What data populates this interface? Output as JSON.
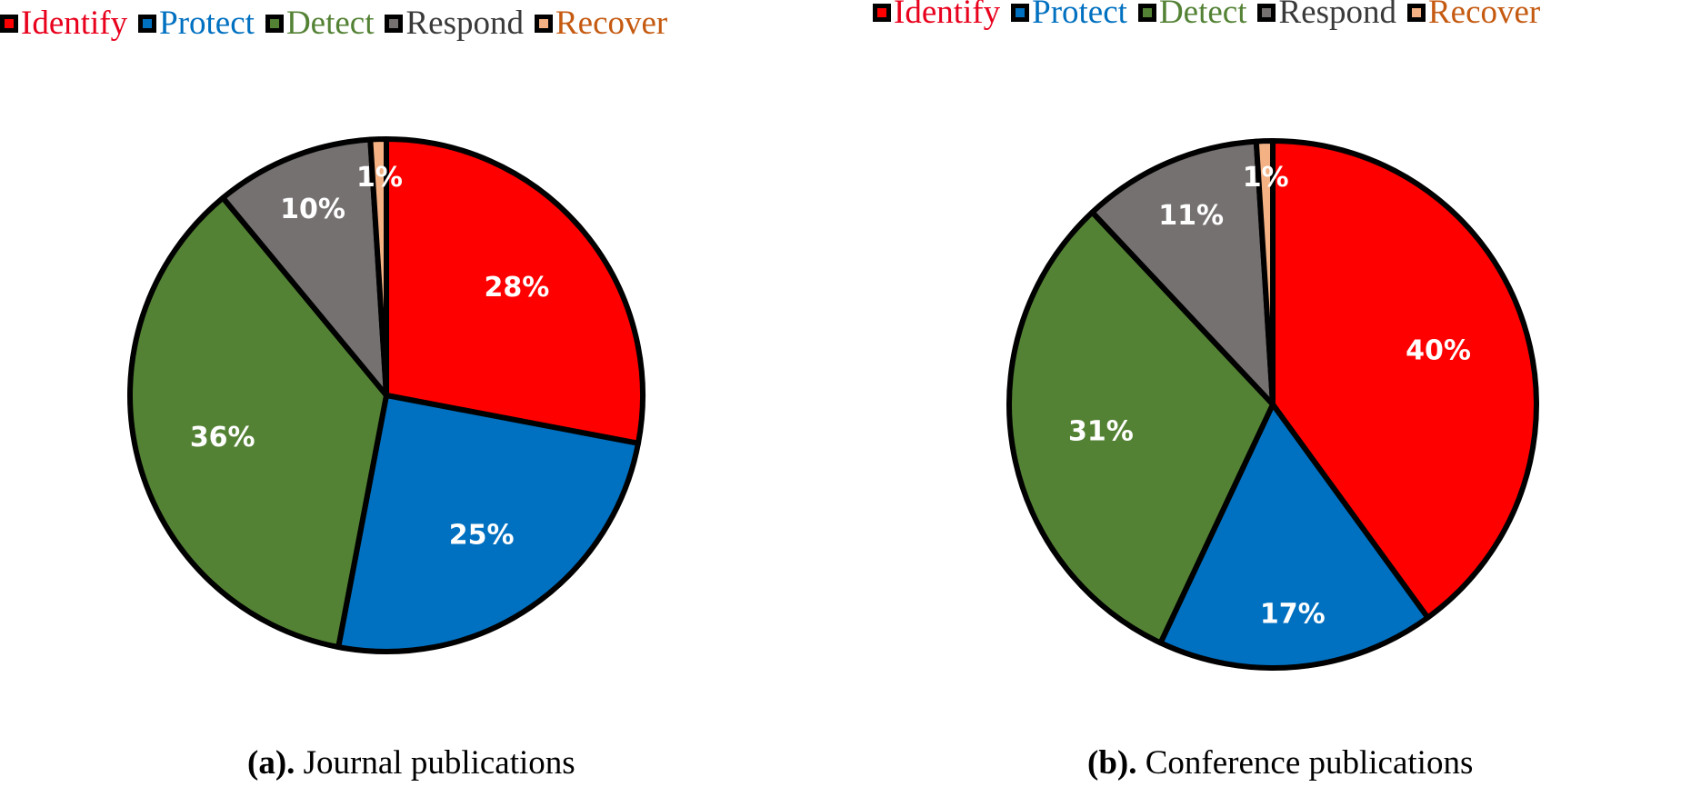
{
  "legend": {
    "items": [
      {
        "label": "Identify",
        "color": "#FF0000",
        "text_color": "#E8001C"
      },
      {
        "label": "Protect",
        "color": "#0070C0",
        "text_color": "#0070C0"
      },
      {
        "label": "Detect",
        "color": "#548235",
        "text_color": "#548235"
      },
      {
        "label": "Respond",
        "color": "#767171",
        "text_color": "#3A3A3A"
      },
      {
        "label": "Recover",
        "color": "#F4B183",
        "text_color": "#C55A11"
      }
    ]
  },
  "captions": {
    "a": {
      "prefix": "(a).",
      "text": " Journal publications"
    },
    "b": {
      "prefix": "(b).",
      "text": " Conference publications"
    }
  },
  "chart_data": [
    {
      "type": "pie",
      "title": "",
      "categories": [
        "Identify",
        "Protect",
        "Detect",
        "Respond",
        "Recover"
      ],
      "values": [
        28,
        25,
        36,
        10,
        1
      ],
      "labels": [
        "28%",
        "25%",
        "36%",
        "10%",
        "1%"
      ],
      "colors": [
        "#FF0000",
        "#0070C0",
        "#548235",
        "#767171",
        "#F4B183"
      ],
      "legend": "top"
    },
    {
      "type": "pie",
      "title": "",
      "categories": [
        "Identify",
        "Protect",
        "Detect",
        "Respond",
        "Recover"
      ],
      "values": [
        40,
        17,
        31,
        11,
        1
      ],
      "labels": [
        "40%",
        "17%",
        "31%",
        "11%",
        "1%"
      ],
      "colors": [
        "#FF0000",
        "#0070C0",
        "#548235",
        "#767171",
        "#F4B183"
      ],
      "legend": "top"
    }
  ]
}
